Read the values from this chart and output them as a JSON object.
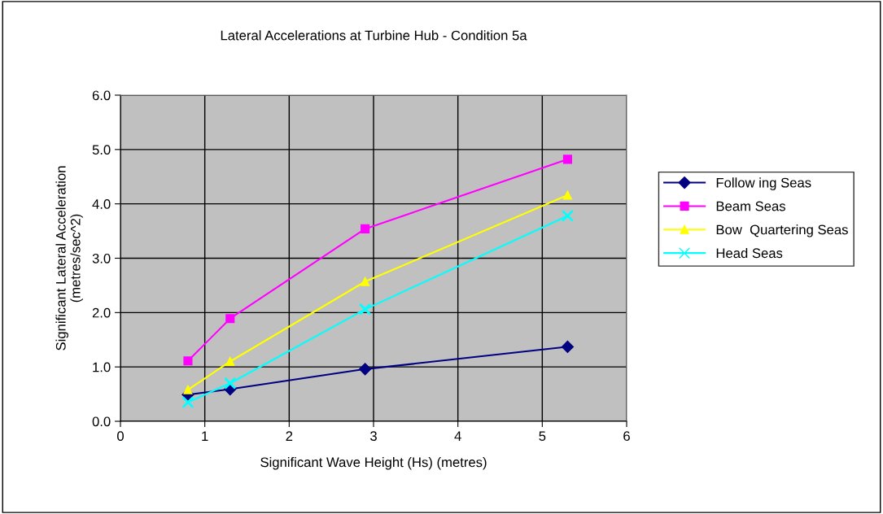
{
  "chart_data": {
    "type": "line",
    "title": "Lateral Accelerations at Turbine Hub - Condition 5a",
    "xlabel": "Significant Wave Height (Hs) (metres)",
    "ylabel": "Significant Lateral Acceleration\n(metres/sec^2)",
    "x": [
      0.8,
      1.3,
      2.9,
      5.3
    ],
    "series": [
      {
        "name": "Follow ing Seas",
        "color": "#000080",
        "marker": "diamond",
        "values": [
          0.49,
          0.59,
          0.96,
          1.37
        ]
      },
      {
        "name": "Beam Seas",
        "color": "#ff00ff",
        "marker": "square",
        "values": [
          1.11,
          1.89,
          3.54,
          4.82
        ]
      },
      {
        "name": "Bow  Quartering Seas",
        "color": "#ffff00",
        "marker": "triangle",
        "values": [
          0.58,
          1.1,
          2.57,
          4.16
        ]
      },
      {
        "name": "Head Seas",
        "color": "#00ffff",
        "marker": "cross",
        "values": [
          0.35,
          0.7,
          2.06,
          3.78
        ]
      }
    ],
    "xlim": [
      0,
      6
    ],
    "xticks": [
      0,
      1,
      2,
      3,
      4,
      5,
      6
    ],
    "ylim": [
      0,
      6
    ],
    "yticks": [
      {
        "value": 0,
        "label": "0.0"
      },
      {
        "value": 1,
        "label": "1.0"
      },
      {
        "value": 2,
        "label": "2.0"
      },
      {
        "value": 3,
        "label": "3.0"
      },
      {
        "value": 4,
        "label": "4.0"
      },
      {
        "value": 5,
        "label": "5.0"
      },
      {
        "value": 6,
        "label": "6.0"
      }
    ],
    "grid": true,
    "legend": "right",
    "line_style": "solid"
  }
}
